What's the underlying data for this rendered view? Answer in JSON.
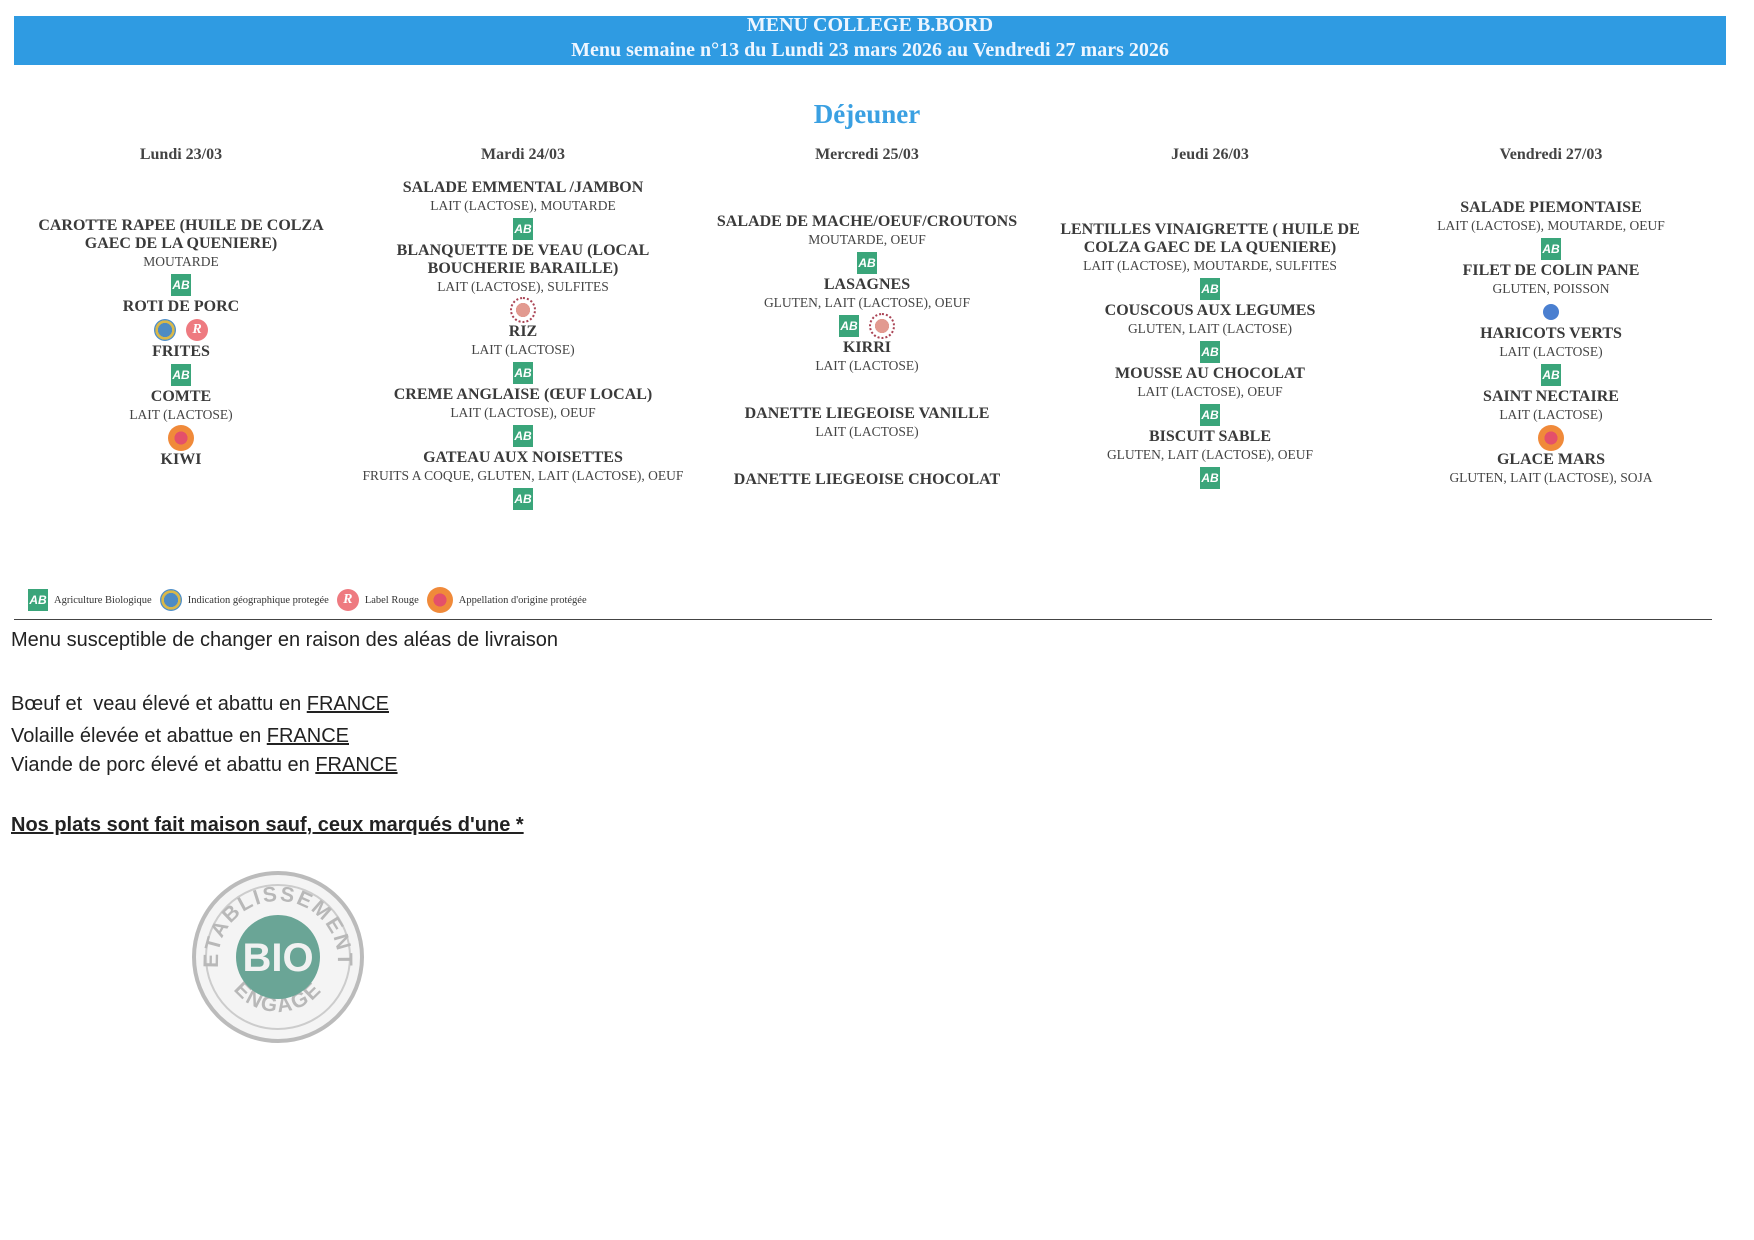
{
  "header": {
    "title": "MENU COLLEGE B.BORD",
    "subtitle": "Menu semaine n°13 du Lundi 23 mars 2026 au Vendredi 27 mars 2026",
    "color": "#2f9be2"
  },
  "meal": "Déjeuner",
  "days": [
    {
      "label": "Lundi 23/03",
      "items": [
        {
          "name": "CAROTTE RAPEE (HUILE DE COLZA GAEC DE LA QUENIERE)",
          "allergens": "MOUTARDE",
          "labels": [
            "ab-icon"
          ]
        },
        {
          "name": "ROTI DE PORC",
          "allergens": "",
          "labels": [
            "igp-icon",
            "label-rouge-icon"
          ]
        },
        {
          "name": "FRITES",
          "allergens": "",
          "labels": [
            "ab-icon"
          ]
        },
        {
          "name": "COMTE",
          "allergens": "LAIT (LACTOSE)",
          "labels": [
            "aop-icon"
          ]
        },
        {
          "name": "KIWI",
          "allergens": "",
          "labels": []
        }
      ]
    },
    {
      "label": "Mardi 24/03",
      "items": [
        {
          "name": "SALADE EMMENTAL /JAMBON",
          "allergens": "LAIT (LACTOSE), MOUTARDE",
          "labels": [
            "ab-icon"
          ]
        },
        {
          "name": "BLANQUETTE DE VEAU (LOCAL BOUCHERIE BARAILLE)",
          "allergens": "LAIT (LACTOSE), SULFITES",
          "labels": [
            "origin-label-icon"
          ]
        },
        {
          "name": "RIZ",
          "allergens": "LAIT (LACTOSE)",
          "labels": [
            "ab-icon"
          ]
        },
        {
          "name": "CREME ANGLAISE (ŒUF LOCAL)",
          "allergens": "LAIT (LACTOSE), OEUF",
          "labels": [
            "ab-icon"
          ]
        },
        {
          "name": "GATEAU AUX NOISETTES",
          "allergens": "FRUITS A COQUE, GLUTEN, LAIT (LACTOSE), OEUF",
          "labels": [
            "ab-icon"
          ]
        }
      ]
    },
    {
      "label": "Mercredi 25/03",
      "items": [
        {
          "name": "SALADE DE MACHE/OEUF/CROUTONS",
          "allergens": "MOUTARDE, OEUF",
          "labels": [
            "ab-icon"
          ]
        },
        {
          "name": "LASAGNES",
          "allergens": "GLUTEN, LAIT (LACTOSE), OEUF",
          "labels": [
            "ab-icon",
            "origin-label-icon"
          ]
        },
        {
          "name": "KIRRI",
          "allergens": "LAIT (LACTOSE)",
          "labels": []
        },
        {
          "name": "DANETTE LIEGEOISE VANILLE",
          "allergens": "LAIT (LACTOSE)",
          "labels": []
        },
        {
          "name": "DANETTE LIEGEOISE CHOCOLAT",
          "allergens": "",
          "labels": []
        }
      ]
    },
    {
      "label": "Jeudi 26/03",
      "items": [
        {
          "name": "LENTILLES VINAIGRETTE ( HUILE DE COLZA GAEC DE LA QUENIERE)",
          "allergens": "LAIT (LACTOSE), MOUTARDE, SULFITES",
          "labels": [
            "ab-icon"
          ]
        },
        {
          "name": "COUSCOUS AUX LEGUMES",
          "allergens": "GLUTEN, LAIT (LACTOSE)",
          "labels": [
            "ab-icon"
          ]
        },
        {
          "name": "MOUSSE AU CHOCOLAT",
          "allergens": "LAIT (LACTOSE), OEUF",
          "labels": [
            "ab-icon"
          ]
        },
        {
          "name": "BISCUIT SABLE",
          "allergens": "GLUTEN, LAIT (LACTOSE), OEUF",
          "labels": [
            "ab-icon"
          ]
        }
      ]
    },
    {
      "label": "Vendredi 27/03",
      "items": [
        {
          "name": "SALADE PIEMONTAISE",
          "allergens": "LAIT (LACTOSE), MOUTARDE, OEUF",
          "labels": [
            "ab-icon"
          ]
        },
        {
          "name": "FILET DE COLIN PANE",
          "allergens": "GLUTEN, POISSON",
          "labels": [
            "msc-icon"
          ]
        },
        {
          "name": "HARICOTS VERTS",
          "allergens": "LAIT (LACTOSE)",
          "labels": [
            "ab-icon"
          ]
        },
        {
          "name": "SAINT NECTAIRE",
          "allergens": "LAIT (LACTOSE)",
          "labels": [
            "aop-icon"
          ]
        },
        {
          "name": "GLACE MARS",
          "allergens": "GLUTEN, LAIT (LACTOSE), SOJA",
          "labels": []
        }
      ]
    }
  ],
  "legend": [
    {
      "icon": "ab-icon",
      "label": "Agriculture Biologique"
    },
    {
      "icon": "igp-icon",
      "label": "Indication géographique protegée"
    },
    {
      "icon": "label-rouge-icon",
      "label": "Label Rouge"
    },
    {
      "icon": "aop-icon",
      "label": "Appellation d'origine protégée"
    }
  ],
  "notes": {
    "delivery": "Menu susceptible de changer en raison des aléas de livraison",
    "beef_prefix": "Bœuf et  veau élevé et abattu en ",
    "poultry_prefix": "Volaille élevée et abattue en ",
    "pork_prefix": "Viande de porc élevé et abattu en ",
    "country": "FRANCE",
    "homemade": "Nos plats sont fait maison sauf, ceux marqués d'une *"
  },
  "stamp": {
    "top": "ETABLISSEMENT",
    "center": "BIO",
    "bottom": "ENGAGE"
  },
  "ab_text": "AB",
  "lr_text": "R"
}
